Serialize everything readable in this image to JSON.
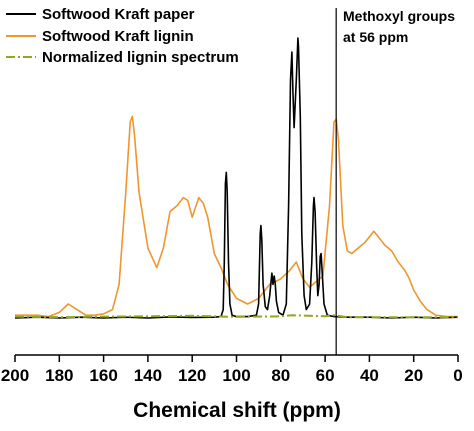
{
  "chart_data": {
    "type": "line",
    "title": "",
    "xlabel": "Chemical shift (ppm)",
    "ylabel": "",
    "xlim": [
      200,
      0
    ],
    "x_reversed": true,
    "xticks": [
      "200",
      "180",
      "160",
      "140",
      "120",
      "100",
      "80",
      "60",
      "40",
      "20",
      "0"
    ],
    "grid": false,
    "legend_position": "top-left",
    "series": [
      {
        "name": "Softwood Kraft paper",
        "color": "#000000",
        "style": "solid",
        "points": [
          [
            200,
            0
          ],
          [
            190,
            0.3
          ],
          [
            180,
            0
          ],
          [
            170,
            0.3
          ],
          [
            160,
            0
          ],
          [
            150,
            0.3
          ],
          [
            140,
            0
          ],
          [
            130,
            0.4
          ],
          [
            120,
            0.2
          ],
          [
            110,
            0.3
          ],
          [
            107,
            0.5
          ],
          [
            106,
            3
          ],
          [
            105.5,
            20
          ],
          [
            105,
            48
          ],
          [
            104.6,
            52
          ],
          [
            104.2,
            45
          ],
          [
            103.6,
            20
          ],
          [
            103,
            5
          ],
          [
            102,
            1
          ],
          [
            100,
            0.5
          ],
          [
            95,
            0.5
          ],
          [
            91,
            1
          ],
          [
            90,
            5
          ],
          [
            89.3,
            30
          ],
          [
            89,
            33
          ],
          [
            88.6,
            28
          ],
          [
            88,
            12
          ],
          [
            87,
            4
          ],
          [
            86,
            3
          ],
          [
            85,
            8
          ],
          [
            84.3,
            14
          ],
          [
            84,
            16
          ],
          [
            83.5,
            12
          ],
          [
            83,
            15
          ],
          [
            82.5,
            12
          ],
          [
            82,
            6
          ],
          [
            81,
            2
          ],
          [
            79,
            1
          ],
          [
            77.5,
            5
          ],
          [
            76.5,
            40
          ],
          [
            75.6,
            85
          ],
          [
            75,
            95
          ],
          [
            74.5,
            80
          ],
          [
            74,
            68
          ],
          [
            73,
            85
          ],
          [
            72.3,
            100
          ],
          [
            72,
            97
          ],
          [
            71.2,
            72
          ],
          [
            70.5,
            30
          ],
          [
            69.5,
            8
          ],
          [
            68.5,
            3
          ],
          [
            67,
            5
          ],
          [
            66,
            20
          ],
          [
            65.3,
            40
          ],
          [
            65,
            43
          ],
          [
            64.5,
            38
          ],
          [
            63.8,
            18
          ],
          [
            63.3,
            8
          ],
          [
            62.7,
            12
          ],
          [
            62.2,
            22
          ],
          [
            61.8,
            23
          ],
          [
            61.2,
            15
          ],
          [
            60.5,
            5
          ],
          [
            59,
            1
          ],
          [
            56,
            0.5
          ],
          [
            50,
            0.3
          ],
          [
            40,
            0.3
          ],
          [
            30,
            0
          ],
          [
            20,
            0.3
          ],
          [
            10,
            0
          ],
          [
            0,
            0.3
          ]
        ]
      },
      {
        "name": "Softwood Kraft lignin",
        "color": "#F0962D",
        "style": "solid",
        "points": [
          [
            200,
            1
          ],
          [
            190,
            1
          ],
          [
            185,
            0.5
          ],
          [
            180,
            2
          ],
          [
            176,
            5
          ],
          [
            172,
            3
          ],
          [
            168,
            1
          ],
          [
            164,
            1
          ],
          [
            160,
            1.5
          ],
          [
            156,
            3
          ],
          [
            153,
            12
          ],
          [
            150,
            45
          ],
          [
            148,
            70
          ],
          [
            147,
            72
          ],
          [
            146,
            65
          ],
          [
            144,
            45
          ],
          [
            140,
            25
          ],
          [
            136,
            18
          ],
          [
            133,
            25
          ],
          [
            130,
            38
          ],
          [
            127,
            40
          ],
          [
            124,
            43
          ],
          [
            122,
            42
          ],
          [
            120,
            36
          ],
          [
            117,
            43
          ],
          [
            115,
            41
          ],
          [
            113,
            36
          ],
          [
            110,
            23
          ],
          [
            107,
            18
          ],
          [
            104,
            12
          ],
          [
            100,
            7
          ],
          [
            95,
            5
          ],
          [
            90,
            7
          ],
          [
            85,
            12
          ],
          [
            80,
            14
          ],
          [
            76,
            17
          ],
          [
            73,
            20
          ],
          [
            70,
            14
          ],
          [
            67,
            11
          ],
          [
            64,
            13
          ],
          [
            61,
            15
          ],
          [
            58,
            40
          ],
          [
            56,
            70
          ],
          [
            55,
            71
          ],
          [
            54,
            64
          ],
          [
            52,
            33
          ],
          [
            50,
            24
          ],
          [
            48,
            23
          ],
          [
            45,
            25
          ],
          [
            42,
            27
          ],
          [
            38,
            31
          ],
          [
            36,
            29
          ],
          [
            33,
            26
          ],
          [
            30,
            24
          ],
          [
            27,
            20
          ],
          [
            24,
            17
          ],
          [
            22,
            14
          ],
          [
            20,
            10
          ],
          [
            17,
            6
          ],
          [
            14,
            3
          ],
          [
            10,
            1
          ],
          [
            5,
            0.5
          ],
          [
            0,
            0.5
          ]
        ]
      },
      {
        "name": "Normalized lignin spectrum",
        "color": "#8FA81F",
        "style": "dashdot",
        "points": [
          [
            200,
            0.5
          ],
          [
            180,
            0.3
          ],
          [
            160,
            0.5
          ],
          [
            140,
            0.6
          ],
          [
            120,
            0.8
          ],
          [
            100,
            0.4
          ],
          [
            80,
            0.6
          ],
          [
            75,
            1
          ],
          [
            60,
            0.6
          ],
          [
            56,
            1
          ],
          [
            50,
            0.3
          ],
          [
            30,
            0.3
          ],
          [
            10,
            0.3
          ],
          [
            0,
            0.3
          ]
        ]
      }
    ],
    "annotations": [
      {
        "type": "vline",
        "x": 55,
        "lines": [
          "Methoxyl groups",
          "at 56 ppm"
        ]
      }
    ]
  }
}
